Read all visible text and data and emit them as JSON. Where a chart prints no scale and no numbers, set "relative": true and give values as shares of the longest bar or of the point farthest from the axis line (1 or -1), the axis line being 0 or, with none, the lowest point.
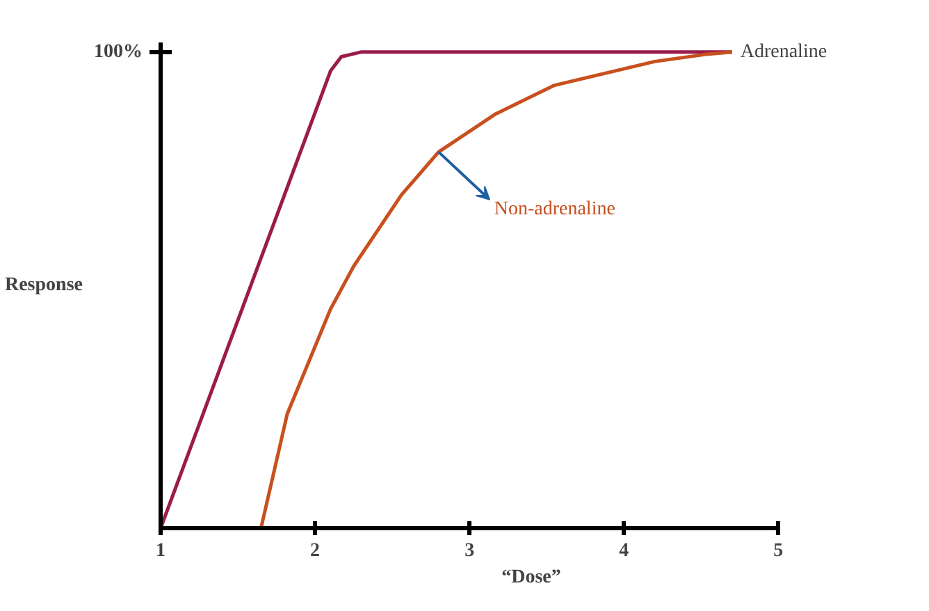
{
  "chart_data": {
    "type": "line",
    "xlabel": "“Dose”",
    "ylabel": "Response",
    "relative": true,
    "xlim": [
      1,
      5
    ],
    "xticks": [
      1,
      2,
      3,
      4,
      5
    ],
    "grid": false,
    "marker": "none",
    "line_style": "solid",
    "annotations": [
      "100%"
    ],
    "series": [
      {
        "name": "Adrenaline",
        "color": "#9b1b4b",
        "x": [
          1,
          2.1,
          2.17,
          2.3,
          3.0,
          4.0,
          4.7
        ],
        "values": [
          0,
          0.96,
          0.99,
          1.0,
          1.0,
          1.0,
          1.0
        ]
      },
      {
        "name": "Non-adrenaline",
        "color": "#c8501e",
        "x": [
          1.65,
          1.82,
          2.1,
          2.25,
          2.56,
          2.8,
          3.17,
          3.55,
          4.2,
          4.53,
          4.7
        ],
        "values": [
          0,
          0.24,
          0.46,
          0.55,
          0.7,
          0.79,
          0.87,
          0.93,
          0.98,
          0.995,
          1.0
        ]
      }
    ]
  }
}
